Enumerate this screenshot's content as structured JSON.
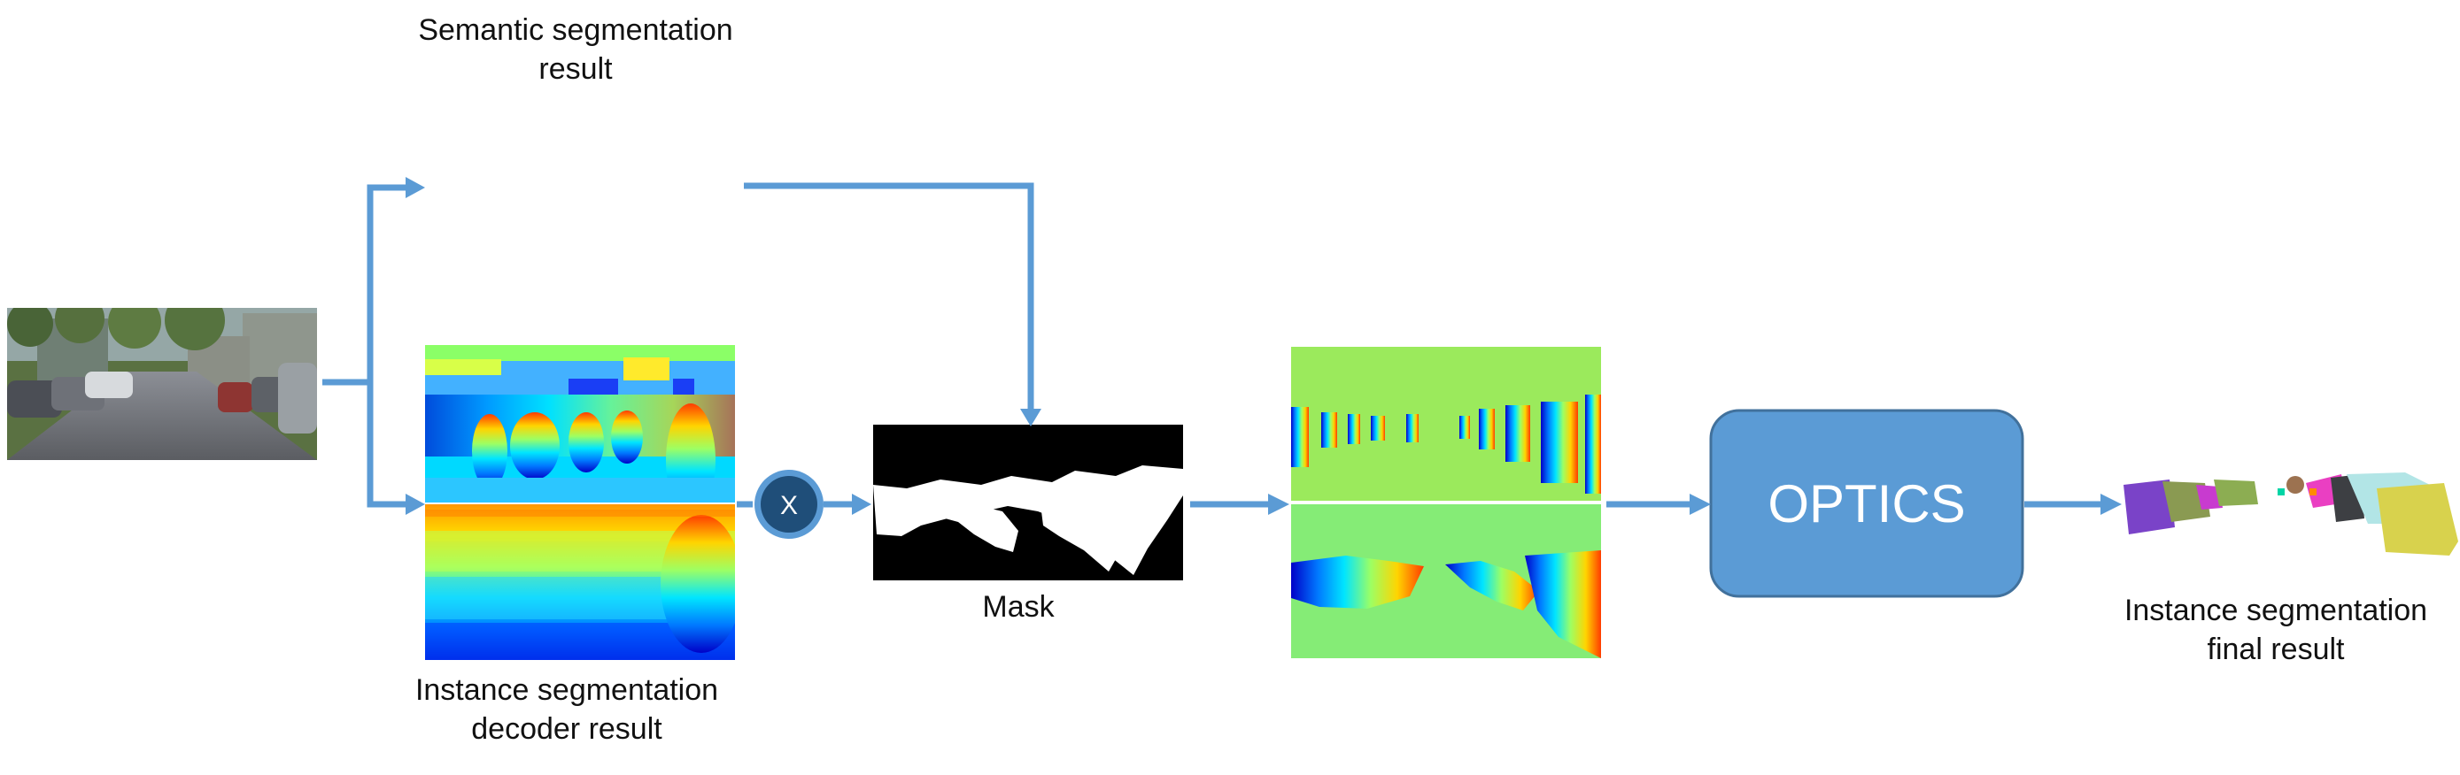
{
  "labels": {
    "semantic_result": "Semantic segmentation\nresult",
    "instance_decoder_result": "Instance segmentation\ndecoder result",
    "mask": "Mask",
    "instance_final_result": "Instance segmentation\nfinal result"
  },
  "nodes": {
    "optics_label": "OPTICS",
    "multiply_symbol": "X"
  },
  "colors": {
    "arrow": "#5B9BD5",
    "optics_fill": "#5B9BD5",
    "optics_stroke": "#41719C",
    "multiply_fill": "#1F4E79",
    "multiply_ring": "#5B9BD5",
    "mask_background": "#000000",
    "mask_foreground": "#ffffff",
    "embedding_background": "#9BEA5C"
  }
}
